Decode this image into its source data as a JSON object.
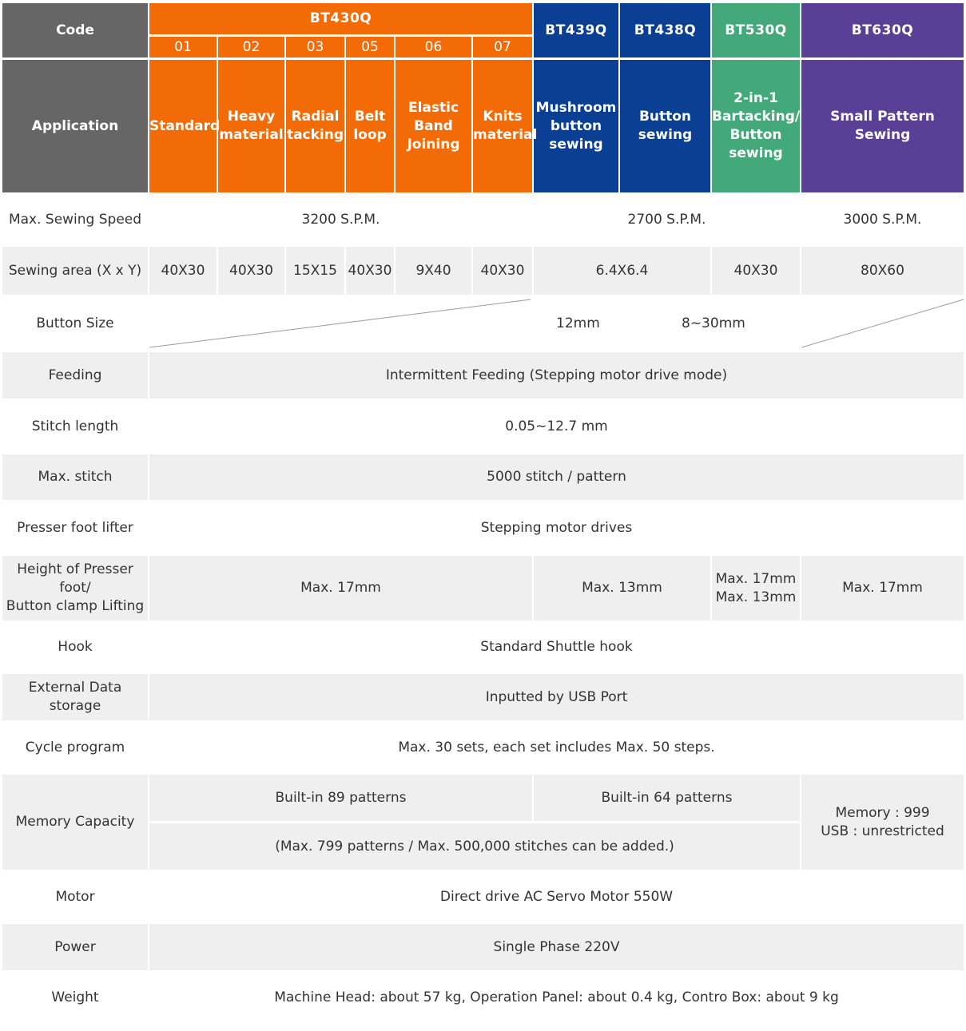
{
  "header": {
    "code_label": "Code",
    "application_label": "Application",
    "models": {
      "bt430q": "BT430Q",
      "bt439q": "BT439Q",
      "bt438q": "BT438Q",
      "bt530q": "BT530Q",
      "bt630q": "BT630Q"
    },
    "sub_codes": [
      "01",
      "02",
      "03",
      "05",
      "06",
      "07"
    ],
    "applications": {
      "c01": "Standard",
      "c02": [
        "Heavy",
        "material"
      ],
      "c03": [
        "Radial",
        "tacking"
      ],
      "c05": [
        "Belt",
        "loop"
      ],
      "c06": [
        "Elastic",
        "Band",
        "Joining"
      ],
      "c07": [
        "Knits",
        "material"
      ],
      "bt439q": [
        "Mushroom",
        "button",
        "sewing"
      ],
      "bt438q": [
        "Button",
        "sewing"
      ],
      "bt530q": [
        "2-in-1",
        "Bartacking/",
        "Button",
        "sewing"
      ],
      "bt630q": "Small Pattern Sewing"
    },
    "colors": {
      "label_bg": "#666666",
      "bt430q": "#f26b06",
      "bt439q_bt438q": "#0b3f93",
      "bt530q": "#43a97a",
      "bt630q": "#5a3f96"
    }
  },
  "rows": {
    "speed": {
      "label": "Max. Sewing Speed",
      "bt430q": "3200 S.P.M.",
      "bt439q_530q": "2700 S.P.M.",
      "bt630q": "3000 S.P.M."
    },
    "area": {
      "label": "Sewing area (X x Y)",
      "c01": "40X30",
      "c02": "40X30",
      "c03": "15X15",
      "c05": "40X30",
      "c06": "9X40",
      "c07": "40X30",
      "bt439q_438q": "6.4X6.4",
      "bt530q": "40X30",
      "bt630q": "80X60"
    },
    "button_size": {
      "label": "Button Size",
      "bt439q": "12mm",
      "bt438q_530q": "8~30mm"
    },
    "feeding": {
      "label": "Feeding",
      "value": "Intermittent Feeding (Stepping motor drive mode)"
    },
    "stitch_length": {
      "label": "Stitch length",
      "value": "0.05~12.7 mm"
    },
    "max_stitch": {
      "label": "Max. stitch",
      "value": "5000 stitch / pattern"
    },
    "presser_lifter": {
      "label": "Presser foot lifter",
      "value": "Stepping motor drives"
    },
    "presser_height": {
      "label_1": "Height of Presser foot/",
      "label_2": "Button clamp Lifting",
      "bt430q": "Max. 17mm",
      "bt439q_438q": "Max. 13mm",
      "bt530q_1": "Max. 17mm",
      "bt530q_2": "Max. 13mm",
      "bt630q": "Max. 17mm"
    },
    "hook": {
      "label": "Hook",
      "value": "Standard Shuttle hook"
    },
    "storage": {
      "label": "External Data storage",
      "value": "Inputted by USB Port"
    },
    "cycle": {
      "label": "Cycle program",
      "value": "Max. 30 sets, each set includes Max. 50 steps."
    },
    "memory": {
      "label": "Memory Capacity",
      "bt430q": "Built-in 89 patterns",
      "bt439q_530q": "Built-in 64 patterns",
      "added": "(Max. 799 patterns / Max. 500,000 stitches can be added.)",
      "bt630q_1": "Memory : 999",
      "bt630q_2": "USB : unrestricted"
    },
    "motor": {
      "label": "Motor",
      "value": "Direct drive AC Servo Motor 550W"
    },
    "power": {
      "label": "Power",
      "value": "Single Phase 220V"
    },
    "weight": {
      "label": "Weight",
      "value": "Machine Head: about 57 kg, Operation Panel: about 0.4 kg, Contro Box: about 9 kg"
    }
  }
}
